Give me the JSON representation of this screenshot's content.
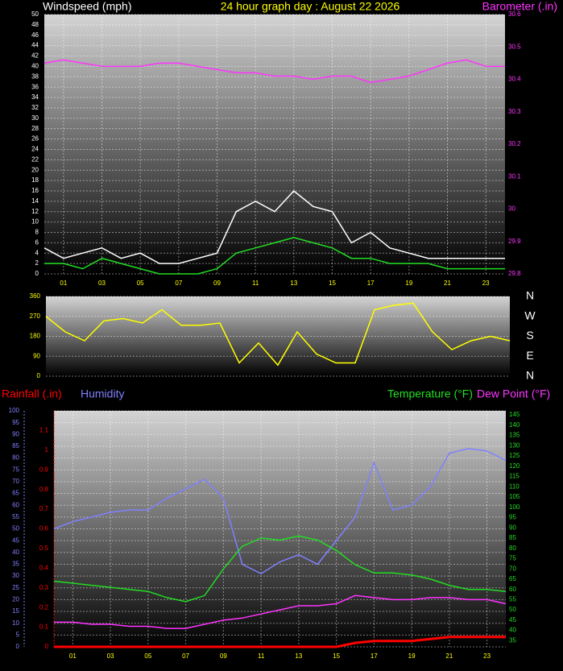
{
  "chart_data": [
    {
      "type": "line",
      "title": "24 hour graph day : August 22 2026",
      "y_label": "Windspeed (mph)",
      "y2_label": "Barometer (.in)",
      "x": [
        0,
        1,
        2,
        3,
        4,
        5,
        6,
        7,
        8,
        9,
        10,
        11,
        12,
        13,
        14,
        15,
        16,
        17,
        18,
        19,
        20,
        21,
        22,
        23,
        24
      ],
      "xlim": [
        0,
        24
      ],
      "xticks": [
        {
          "value": 1,
          "label": "01"
        },
        {
          "value": 3,
          "label": "03"
        },
        {
          "value": 5,
          "label": "05"
        },
        {
          "value": 7,
          "label": "07"
        },
        {
          "value": 9,
          "label": "09"
        },
        {
          "value": 11,
          "label": "11"
        },
        {
          "value": 13,
          "label": "13"
        },
        {
          "value": 15,
          "label": "15"
        },
        {
          "value": 17,
          "label": "17"
        },
        {
          "value": 19,
          "label": "19"
        },
        {
          "value": 21,
          "label": "21"
        },
        {
          "value": 23,
          "label": "23"
        }
      ],
      "ylim": [
        0,
        50
      ],
      "yticks": [
        0,
        2,
        4,
        6,
        8,
        10,
        12,
        14,
        16,
        18,
        20,
        22,
        24,
        26,
        28,
        30,
        32,
        34,
        36,
        38,
        40,
        42,
        44,
        46,
        48,
        50
      ],
      "y2lim": [
        29.8,
        30.6
      ],
      "y2ticks": [
        {
          "value": 29.8,
          "label": "29.8"
        },
        {
          "value": 29.9,
          "label": "29.9"
        },
        {
          "value": 30,
          "label": "30"
        },
        {
          "value": 30.1,
          "label": "30.1"
        },
        {
          "value": 30.2,
          "label": "30.2"
        },
        {
          "value": 30.3,
          "label": "30.3"
        },
        {
          "value": 30.4,
          "label": "30.4"
        },
        {
          "value": 30.5,
          "label": "30.5"
        },
        {
          "value": 30.6,
          "label": "30.6"
        }
      ],
      "grid": true,
      "series": [
        {
          "color": "#ffffff",
          "values": [
            5,
            3,
            4,
            5,
            3,
            4,
            2,
            2,
            3,
            4,
            12,
            14,
            12,
            16,
            13,
            12,
            6,
            8,
            5,
            4,
            3,
            3,
            3,
            3,
            3
          ]
        },
        {
          "color": "#22dd22",
          "values": [
            2,
            2,
            1,
            3,
            2,
            1,
            0,
            0,
            0,
            1,
            4,
            5,
            6,
            7,
            6,
            5,
            3,
            3,
            2,
            2,
            2,
            1,
            1,
            1,
            1
          ]
        },
        {
          "color": "#ff33ff",
          "axis": "y2",
          "values": [
            30.45,
            30.46,
            30.45,
            30.44,
            30.44,
            30.44,
            30.45,
            30.45,
            30.44,
            30.43,
            30.42,
            30.42,
            30.41,
            30.41,
            30.4,
            30.41,
            30.41,
            30.39,
            30.4,
            30.41,
            30.43,
            30.45,
            30.46,
            30.44,
            30.44
          ]
        }
      ]
    },
    {
      "type": "line",
      "x": [
        0,
        1,
        2,
        3,
        4,
        5,
        6,
        7,
        8,
        9,
        10,
        11,
        12,
        13,
        14,
        15,
        16,
        17,
        18,
        19,
        20,
        21,
        22,
        23,
        24
      ],
      "xlim": [
        0,
        24
      ],
      "ylim": [
        0,
        360
      ],
      "yticks": [
        0,
        90,
        180,
        270,
        360
      ],
      "y2lim": [
        0,
        360
      ],
      "y2ticks": [
        {
          "value": 360,
          "label": "N"
        },
        {
          "value": 270,
          "label": "W"
        },
        {
          "value": 180,
          "label": "S"
        },
        {
          "value": 90,
          "label": "E"
        },
        {
          "value": 0,
          "label": "N"
        }
      ],
      "grid": true,
      "series": [
        {
          "color": "#ffff00",
          "values": [
            270,
            200,
            160,
            250,
            260,
            240,
            300,
            230,
            230,
            240,
            60,
            150,
            50,
            200,
            100,
            60,
            60,
            300,
            320,
            330,
            200,
            120,
            160,
            180,
            160
          ]
        }
      ]
    },
    {
      "type": "line",
      "x": [
        0,
        1,
        2,
        3,
        4,
        5,
        6,
        7,
        8,
        9,
        10,
        11,
        12,
        13,
        14,
        15,
        16,
        17,
        18,
        19,
        20,
        21,
        22,
        23,
        24
      ],
      "xlim": [
        0,
        24
      ],
      "xticks": [
        {
          "value": 1,
          "label": "01"
        },
        {
          "value": 3,
          "label": "03"
        },
        {
          "value": 5,
          "label": "05"
        },
        {
          "value": 7,
          "label": "07"
        },
        {
          "value": 9,
          "label": "09"
        },
        {
          "value": 11,
          "label": "11"
        },
        {
          "value": 13,
          "label": "13"
        },
        {
          "value": 15,
          "label": "15"
        },
        {
          "value": 17,
          "label": "17"
        },
        {
          "value": 19,
          "label": "19"
        },
        {
          "value": 21,
          "label": "21"
        },
        {
          "value": 23,
          "label": "23"
        }
      ],
      "ylim": [
        0,
        1.2
      ],
      "yticks": [
        0,
        0.1,
        0.2,
        0.3,
        0.4,
        0.5,
        0.6,
        0.7,
        0.8,
        0.9,
        1,
        1.1
      ],
      "y2lim": [
        32,
        147
      ],
      "y2ticks": [
        35,
        40,
        45,
        50,
        55,
        60,
        65,
        70,
        75,
        80,
        85,
        90,
        95,
        100,
        105,
        110,
        115,
        120,
        125,
        130,
        135,
        140,
        145
      ],
      "y3lim": [
        0,
        100
      ],
      "y3ticks": [
        0,
        5,
        10,
        15,
        20,
        25,
        30,
        35,
        40,
        45,
        50,
        55,
        60,
        65,
        70,
        75,
        80,
        85,
        90,
        95,
        100
      ],
      "grid": true,
      "series": [
        {
          "name": "Rainfall (.in)",
          "color": "#ff0000",
          "values": [
            0,
            0,
            0,
            0,
            0,
            0,
            0,
            0,
            0,
            0,
            0,
            0,
            0,
            0,
            0,
            0,
            0.02,
            0.03,
            0.03,
            0.03,
            0.04,
            0.05,
            0.05,
            0.05,
            0.05
          ]
        },
        {
          "name": "Humidity",
          "color": "#8080ff",
          "axis": "y3",
          "values": [
            50,
            53,
            55,
            57,
            58,
            58,
            63,
            67,
            71,
            63,
            35,
            31,
            36,
            39,
            35,
            45,
            55,
            78,
            58,
            60,
            68,
            82,
            84,
            83,
            79
          ]
        },
        {
          "name": "Temperature (°F)",
          "color": "#22dd22",
          "axis": "y2",
          "values": [
            64,
            63,
            62,
            61,
            60,
            59,
            56,
            54,
            57,
            70,
            81,
            85,
            84,
            86,
            84,
            79,
            72,
            68,
            68,
            67,
            65,
            62,
            60,
            60,
            59
          ]
        },
        {
          "name": "Dew Point (°F)",
          "color": "#ff33ff",
          "axis": "y2",
          "values": [
            44,
            44,
            43,
            43,
            42,
            42,
            41,
            41,
            43,
            45,
            46,
            48,
            50,
            52,
            52,
            53,
            57,
            56,
            55,
            55,
            56,
            56,
            55,
            55,
            53
          ]
        }
      ]
    }
  ]
}
